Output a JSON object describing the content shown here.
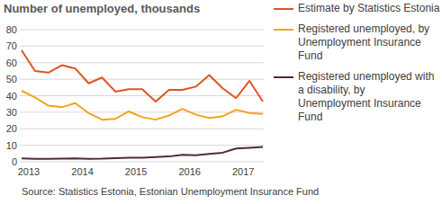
{
  "chart_data": {
    "type": "line",
    "title": "Number of unemployed, thousands",
    "source": "Source: Statistics Estonia, Estonian Unemployment Insurance Fund",
    "categories": [
      "2013",
      null,
      null,
      null,
      "2014",
      null,
      null,
      null,
      "2015",
      null,
      null,
      null,
      "2016",
      null,
      null,
      null,
      "2017",
      null,
      null
    ],
    "series": [
      {
        "name": "Estimate by Statistics Estonia",
        "color": "#e2531e",
        "values": [
          67.5,
          55,
          54,
          58.5,
          56.5,
          47.5,
          51,
          42.5,
          44,
          44,
          36.5,
          43.5,
          43.5,
          45.5,
          52.5,
          44.5,
          38.5,
          49,
          36.5
        ]
      },
      {
        "name": "Registered unemployed, by Unemployment Insurance Fund",
        "color": "#f5a31d",
        "values": [
          43,
          39,
          34,
          33,
          35.5,
          29.5,
          25.5,
          26,
          30.5,
          27,
          25.5,
          28,
          32,
          28.5,
          26.5,
          27.5,
          31.5,
          29.5,
          29
        ]
      },
      {
        "name": "Registered unemployed with a disability, by Unemployment Insurance Fund",
        "color": "#4e2a40",
        "values": [
          2,
          1.8,
          1.8,
          1.9,
          2,
          1.8,
          1.9,
          2.2,
          2.5,
          2.5,
          2.8,
          3.2,
          4.2,
          4,
          4.8,
          5.5,
          8,
          8.5,
          9
        ]
      }
    ],
    "ylim": [
      0,
      80
    ],
    "yticks": [
      0,
      10,
      20,
      30,
      40,
      50,
      60,
      70,
      80
    ],
    "grid": true,
    "legend": "right"
  }
}
